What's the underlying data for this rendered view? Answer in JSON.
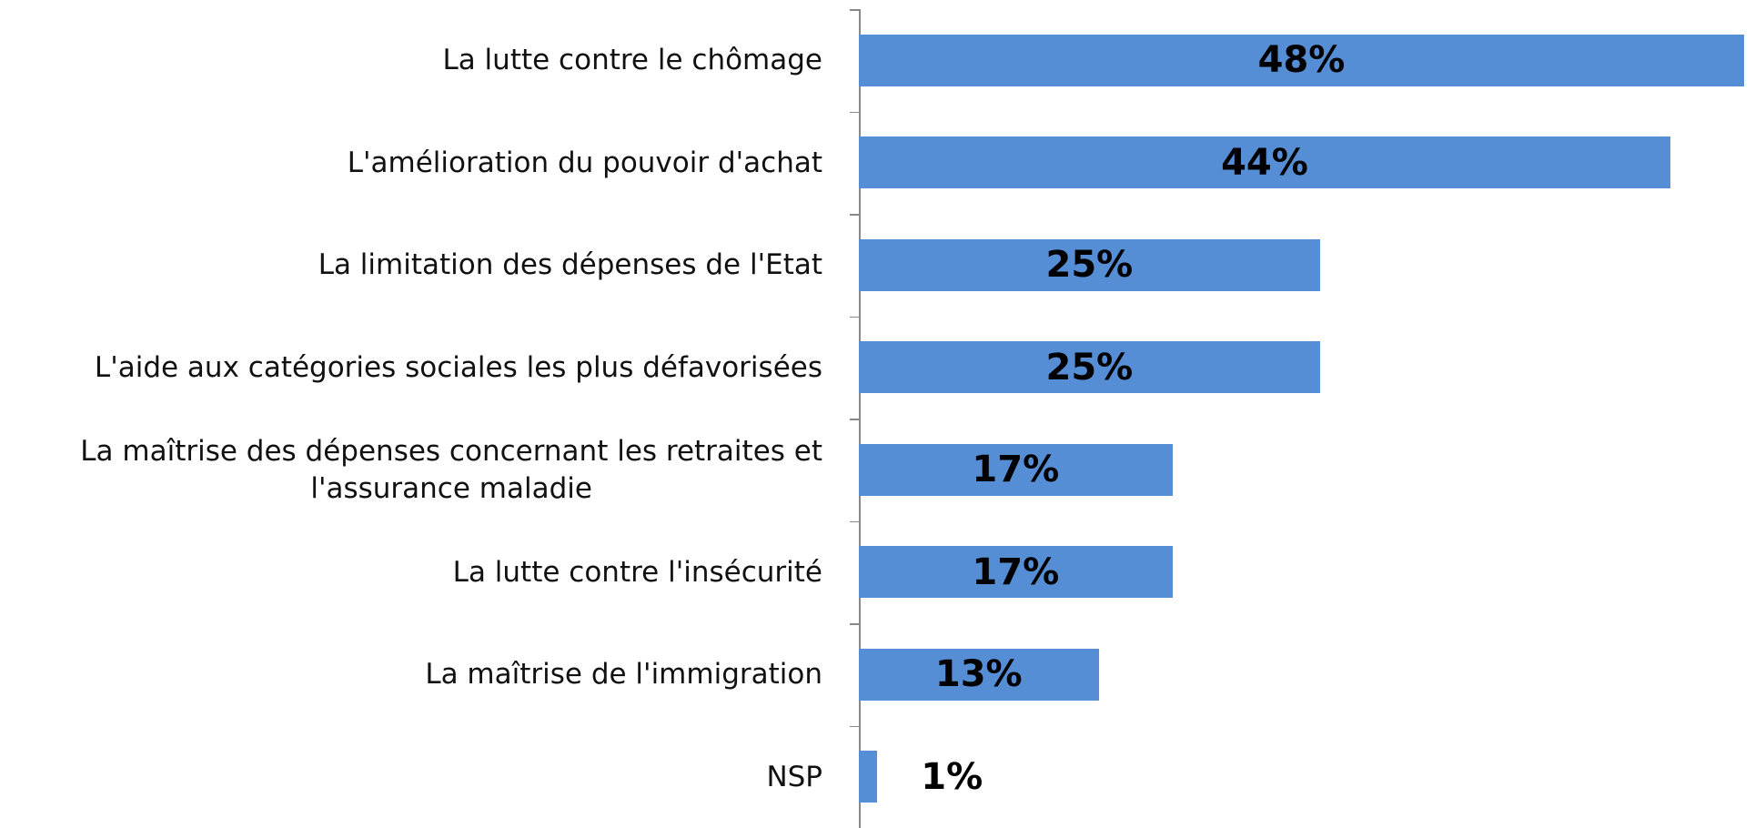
{
  "chart_data": {
    "type": "bar",
    "orientation": "horizontal",
    "categories": [
      "La lutte contre le chômage",
      "L'amélioration du pouvoir d'achat",
      "La limitation des dépenses de l'Etat",
      "L'aide aux catégories sociales les plus défavorisées",
      "La maîtrise des dépenses concernant les retraites et\nl'assurance maladie",
      "La lutte contre l'insécurité",
      "La maîtrise de l'immigration",
      "NSP"
    ],
    "values": [
      48,
      44,
      25,
      25,
      17,
      17,
      13,
      1
    ],
    "value_labels": [
      "48%",
      "44%",
      "25%",
      "25%",
      "17%",
      "17%",
      "13%",
      "1%"
    ],
    "color": "#558ed5"
  }
}
